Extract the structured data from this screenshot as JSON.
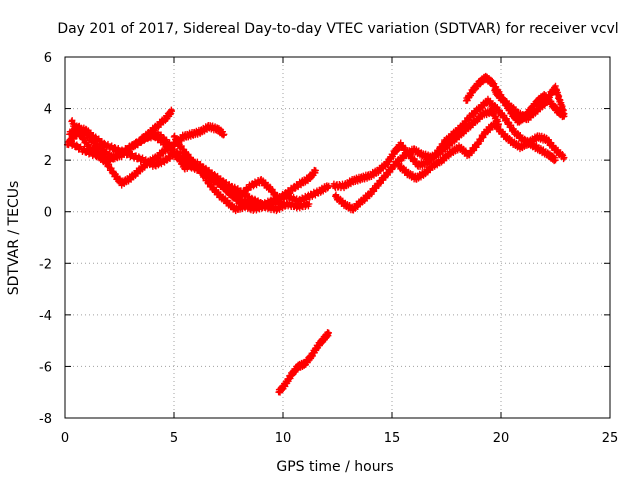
{
  "chart_data": {
    "type": "scatter",
    "title": "Day 201 of 2017, Sidereal Day-to-day VTEC variation (SDTVAR) for receiver vcvl",
    "xlabel": "GPS time / hours",
    "ylabel": "SDTVAR / TECUs",
    "xlim": [
      0,
      25
    ],
    "ylim": [
      -8,
      6
    ],
    "xticks": [
      0,
      5,
      10,
      15,
      20,
      25
    ],
    "yticks": [
      -8,
      -6,
      -4,
      -2,
      0,
      2,
      4,
      6
    ],
    "grid": true,
    "marker": "plus",
    "color": "#ff0000",
    "series": [
      {
        "name": "track-1",
        "points": [
          [
            0.2,
            3.0
          ],
          [
            0.6,
            3.3
          ],
          [
            1.0,
            3.0
          ],
          [
            1.4,
            2.6
          ],
          [
            1.8,
            2.3
          ],
          [
            2.2,
            2.1
          ],
          [
            2.6,
            2.2
          ],
          [
            3.0,
            2.5
          ],
          [
            3.4,
            2.7
          ],
          [
            3.8,
            3.0
          ],
          [
            4.2,
            3.3
          ],
          [
            4.6,
            3.6
          ],
          [
            4.9,
            3.9
          ]
        ]
      },
      {
        "name": "track-2",
        "points": [
          [
            0.3,
            3.5
          ],
          [
            0.7,
            3.0
          ],
          [
            1.1,
            2.5
          ],
          [
            1.5,
            2.2
          ],
          [
            1.9,
            1.9
          ],
          [
            2.3,
            1.4
          ],
          [
            2.6,
            1.1
          ],
          [
            3.0,
            1.3
          ],
          [
            3.4,
            1.6
          ],
          [
            3.8,
            1.9
          ],
          [
            4.2,
            2.1
          ],
          [
            4.6,
            2.4
          ],
          [
            5.0,
            2.6
          ],
          [
            5.4,
            2.9
          ],
          [
            5.8,
            3.0
          ],
          [
            6.2,
            3.1
          ],
          [
            6.6,
            3.3
          ],
          [
            7.0,
            3.2
          ],
          [
            7.3,
            3.0
          ]
        ]
      },
      {
        "name": "track-3",
        "points": [
          [
            0.2,
            2.7
          ],
          [
            0.8,
            2.4
          ],
          [
            1.4,
            2.2
          ],
          [
            2.0,
            2.0
          ],
          [
            2.6,
            2.3
          ],
          [
            3.2,
            2.6
          ],
          [
            3.8,
            2.9
          ],
          [
            4.3,
            3.0
          ],
          [
            4.8,
            2.6
          ],
          [
            5.2,
            2.1
          ],
          [
            5.5,
            1.7
          ],
          [
            6.0,
            1.9
          ],
          [
            6.5,
            1.6
          ],
          [
            7.0,
            1.3
          ],
          [
            7.5,
            1.0
          ],
          [
            8.0,
            0.8
          ],
          [
            8.5,
            0.5
          ],
          [
            9.0,
            0.3
          ]
        ]
      },
      {
        "name": "track-4",
        "points": [
          [
            3.5,
            2.8
          ],
          [
            4.0,
            3.0
          ],
          [
            4.5,
            2.7
          ],
          [
            4.9,
            2.3
          ],
          [
            5.3,
            2.0
          ],
          [
            5.7,
            1.8
          ],
          [
            6.2,
            1.6
          ],
          [
            6.7,
            1.3
          ],
          [
            7.2,
            1.0
          ],
          [
            7.7,
            0.6
          ],
          [
            8.2,
            0.4
          ],
          [
            8.7,
            0.2
          ],
          [
            9.2,
            0.3
          ],
          [
            9.7,
            0.5
          ],
          [
            10.2,
            0.6
          ],
          [
            10.7,
            0.4
          ],
          [
            11.2,
            0.6
          ],
          [
            11.7,
            0.8
          ],
          [
            12.1,
            1.0
          ]
        ]
      },
      {
        "name": "track-5",
        "points": [
          [
            5.0,
            2.9
          ],
          [
            5.4,
            2.4
          ],
          [
            5.8,
            2.0
          ],
          [
            6.2,
            1.6
          ],
          [
            6.6,
            1.1
          ],
          [
            7.0,
            0.7
          ],
          [
            7.4,
            0.4
          ],
          [
            7.8,
            0.1
          ],
          [
            8.2,
            0.2
          ],
          [
            8.7,
            0.4
          ],
          [
            9.2,
            0.2
          ],
          [
            9.7,
            0.1
          ],
          [
            10.2,
            0.3
          ],
          [
            10.7,
            0.2
          ],
          [
            11.2,
            0.3
          ]
        ]
      },
      {
        "name": "track-6",
        "points": [
          [
            7.5,
            0.8
          ],
          [
            8.0,
            0.6
          ],
          [
            8.5,
            1.0
          ],
          [
            9.0,
            1.2
          ],
          [
            9.4,
            0.9
          ],
          [
            9.8,
            0.5
          ],
          [
            10.3,
            0.8
          ],
          [
            10.8,
            1.1
          ],
          [
            11.2,
            1.3
          ],
          [
            11.5,
            1.6
          ]
        ]
      },
      {
        "name": "track-7",
        "points": [
          [
            12.4,
            0.6
          ],
          [
            12.8,
            0.3
          ],
          [
            13.2,
            0.1
          ],
          [
            13.6,
            0.4
          ],
          [
            14.0,
            0.7
          ],
          [
            14.4,
            1.1
          ],
          [
            14.8,
            1.5
          ],
          [
            15.2,
            1.9
          ],
          [
            15.6,
            2.2
          ],
          [
            16.0,
            2.4
          ],
          [
            16.4,
            2.2
          ],
          [
            16.8,
            2.1
          ],
          [
            17.2,
            2.3
          ],
          [
            17.6,
            2.6
          ],
          [
            18.0,
            2.9
          ],
          [
            18.4,
            3.2
          ],
          [
            18.8,
            3.5
          ],
          [
            19.2,
            3.8
          ],
          [
            19.6,
            3.9
          ],
          [
            19.9,
            3.4
          ]
        ]
      },
      {
        "name": "track-8",
        "points": [
          [
            12.3,
            1.0
          ],
          [
            12.8,
            1.0
          ],
          [
            13.2,
            1.2
          ],
          [
            13.6,
            1.3
          ],
          [
            14.0,
            1.4
          ],
          [
            14.4,
            1.6
          ],
          [
            14.8,
            1.9
          ],
          [
            15.1,
            2.3
          ],
          [
            15.4,
            2.6
          ],
          [
            15.8,
            2.2
          ],
          [
            16.2,
            1.8
          ],
          [
            16.6,
            1.9
          ],
          [
            17.0,
            2.2
          ],
          [
            17.4,
            2.7
          ],
          [
            17.8,
            3.0
          ],
          [
            18.2,
            3.3
          ],
          [
            18.6,
            3.7
          ],
          [
            19.0,
            4.0
          ],
          [
            19.4,
            4.3
          ],
          [
            19.8,
            4.0
          ],
          [
            20.2,
            3.6
          ],
          [
            20.6,
            3.1
          ],
          [
            21.0,
            2.8
          ],
          [
            21.4,
            2.6
          ],
          [
            21.8,
            2.4
          ],
          [
            22.2,
            2.2
          ],
          [
            22.5,
            2.0
          ]
        ]
      },
      {
        "name": "track-9",
        "points": [
          [
            15.3,
            1.8
          ],
          [
            15.7,
            1.5
          ],
          [
            16.1,
            1.3
          ],
          [
            16.5,
            1.5
          ],
          [
            16.9,
            1.8
          ],
          [
            17.3,
            2.0
          ],
          [
            17.7,
            2.3
          ],
          [
            18.1,
            2.5
          ],
          [
            18.5,
            2.2
          ],
          [
            18.9,
            2.6
          ],
          [
            19.3,
            3.1
          ],
          [
            19.7,
            3.4
          ],
          [
            20.1,
            3.0
          ],
          [
            20.5,
            2.7
          ],
          [
            20.9,
            2.5
          ],
          [
            21.3,
            2.7
          ],
          [
            21.7,
            2.9
          ],
          [
            22.1,
            2.8
          ],
          [
            22.5,
            2.4
          ],
          [
            22.9,
            2.1
          ]
        ]
      },
      {
        "name": "track-10",
        "points": [
          [
            18.4,
            4.3
          ],
          [
            18.7,
            4.7
          ],
          [
            19.0,
            5.0
          ],
          [
            19.3,
            5.2
          ],
          [
            19.6,
            5.0
          ],
          [
            19.9,
            4.6
          ],
          [
            20.2,
            4.2
          ],
          [
            20.5,
            3.8
          ],
          [
            20.8,
            3.5
          ],
          [
            21.1,
            3.7
          ],
          [
            21.4,
            4.0
          ],
          [
            21.7,
            4.3
          ],
          [
            22.0,
            4.5
          ],
          [
            22.3,
            4.2
          ],
          [
            22.6,
            3.9
          ],
          [
            22.9,
            3.7
          ]
        ]
      },
      {
        "name": "track-11",
        "points": [
          [
            19.7,
            4.7
          ],
          [
            20.0,
            4.4
          ],
          [
            20.4,
            4.1
          ],
          [
            20.8,
            3.8
          ],
          [
            21.2,
            3.6
          ],
          [
            21.6,
            3.9
          ],
          [
            22.0,
            4.2
          ],
          [
            22.3,
            4.6
          ],
          [
            22.5,
            4.8
          ],
          [
            22.7,
            4.3
          ],
          [
            22.9,
            3.8
          ]
        ]
      },
      {
        "name": "track-12",
        "points": [
          [
            0.1,
            2.6
          ],
          [
            0.4,
            2.9
          ],
          [
            0.9,
            3.2
          ],
          [
            1.3,
            2.9
          ],
          [
            1.8,
            2.6
          ],
          [
            2.4,
            2.4
          ],
          [
            3.0,
            2.2
          ],
          [
            3.6,
            2.0
          ],
          [
            4.1,
            1.8
          ],
          [
            4.6,
            2.0
          ],
          [
            5.1,
            2.3
          ],
          [
            5.6,
            2.0
          ],
          [
            6.1,
            1.7
          ],
          [
            6.6,
            1.4
          ],
          [
            7.1,
            1.1
          ],
          [
            7.6,
            0.7
          ],
          [
            8.1,
            0.3
          ],
          [
            8.6,
            0.1
          ],
          [
            9.1,
            0.2
          ],
          [
            9.6,
            0.4
          ],
          [
            10.0,
            0.3
          ]
        ]
      },
      {
        "name": "track-13",
        "points": [
          [
            9.8,
            -7.0
          ],
          [
            10.1,
            -6.7
          ],
          [
            10.4,
            -6.3
          ],
          [
            10.7,
            -6.0
          ],
          [
            11.0,
            -5.9
          ],
          [
            11.3,
            -5.6
          ],
          [
            11.6,
            -5.2
          ],
          [
            11.9,
            -4.9
          ],
          [
            12.1,
            -4.7
          ]
        ]
      }
    ]
  }
}
